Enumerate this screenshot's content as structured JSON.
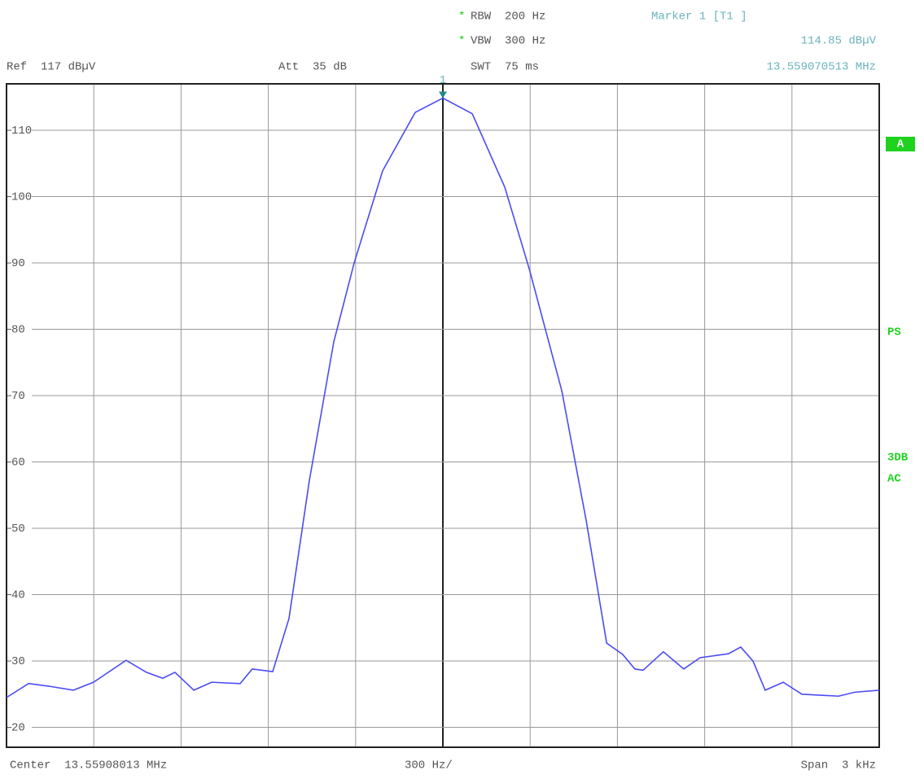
{
  "chart_data": {
    "type": "line",
    "header": {
      "ref": "Ref  117 dBµV",
      "att": "Att  35 dB",
      "flag": "*",
      "rbw": "RBW  200 Hz",
      "vbw": "VBW  300 Hz",
      "swt": "SWT  75 ms",
      "marker_title": "Marker 1 [T1 ]",
      "marker_level": "114.85 dBµV",
      "marker_freq": "13.559070513 MHz"
    },
    "footer": {
      "center": "Center  13.55908013 MHz",
      "div": "300 Hz/",
      "span": "Span  3 kHz"
    },
    "side_labels": [
      "A",
      "PS",
      "3DB",
      "AC"
    ],
    "marker_label": "1",
    "xlim": [
      -1500,
      1500
    ],
    "ylim": [
      17,
      117
    ],
    "yticks": [
      20,
      30,
      40,
      50,
      60,
      70,
      80,
      90,
      100,
      110
    ],
    "grid": true,
    "x": [
      -1500,
      -1424,
      -1354,
      -1270,
      -1201,
      -1089,
      -1019,
      -963,
      -921,
      -856,
      -795,
      -697,
      -655,
      -585,
      -529,
      -459,
      -375,
      -305,
      -207,
      -95,
      0,
      101,
      213,
      297,
      409,
      493,
      563,
      618,
      660,
      688,
      758,
      828,
      884,
      982,
      1024,
      1066,
      1108,
      1170,
      1234,
      1360,
      1416,
      1500
    ],
    "series": [
      {
        "color": "#4b4bf5",
        "values": [
          24.5,
          26.6,
          26.2,
          25.6,
          26.8,
          30.1,
          28.3,
          27.4,
          28.3,
          25.6,
          26.8,
          26.6,
          28.8,
          28.4,
          36.4,
          57.2,
          78.1,
          90,
          103.9,
          112.7,
          114.85,
          112.5,
          101.4,
          89.1,
          70.7,
          51.1,
          32.7,
          31,
          28.8,
          28.6,
          31.4,
          28.8,
          30.5,
          31.1,
          32.1,
          30,
          25.6,
          26.8,
          25,
          24.7,
          25.3,
          25.6
        ]
      }
    ]
  }
}
